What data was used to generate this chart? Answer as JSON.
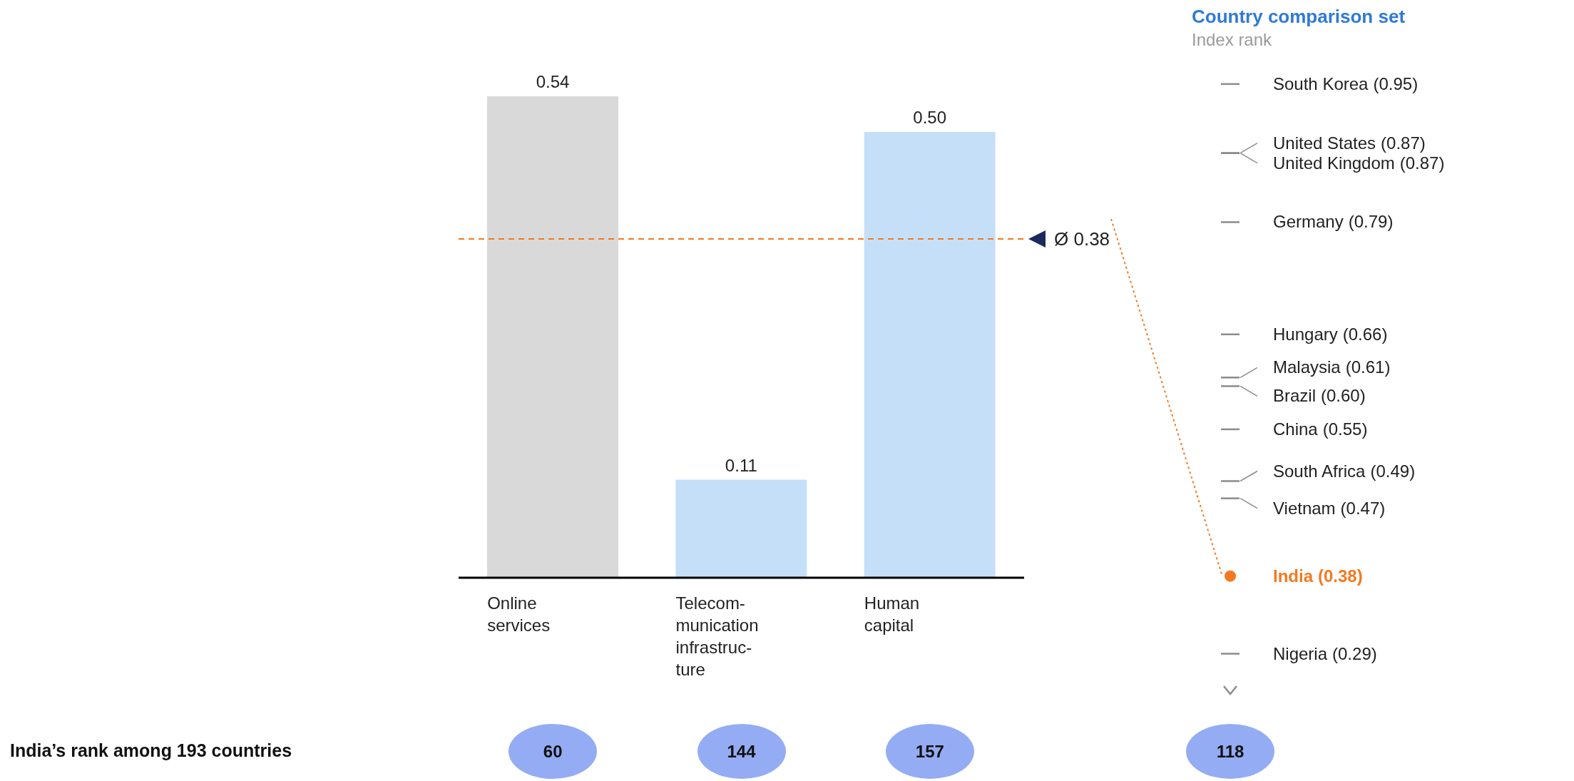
{
  "chart_data": [
    {
      "type": "bar",
      "categories": [
        "Online\nservices",
        "Telecom-\nmunication\ninfrastruc-\nture",
        "Human\ncapital"
      ],
      "values": [
        0.54,
        0.11,
        0.5
      ],
      "colors": [
        "#d9d9d9",
        "#c6dff8",
        "#c6dff8"
      ],
      "value_labels": [
        "0.54",
        "0.11",
        "0.50"
      ],
      "ref_lines": [
        {
          "axis": "y",
          "value": 0.38,
          "label": "Ø 0.38",
          "color": "#f4791f",
          "line_style": "dashed"
        }
      ],
      "annotations": [
        "India’s rank among 193 countries",
        "60",
        "144",
        "157"
      ]
    },
    {
      "type": "other",
      "title": "Country comparison set",
      "subtitle": "Index rank",
      "categories": [
        "South Korea",
        "United States",
        "United Kingdom",
        "Germany",
        "Hungary",
        "Malaysia",
        "Brazil",
        "China",
        "South Africa",
        "Vietnam",
        "India",
        "Nigeria"
      ],
      "series": [
        {
          "color": "#8c8c8c",
          "values": [
            0.95,
            0.87,
            0.87,
            0.79,
            0.66,
            0.61,
            0.6,
            0.55,
            0.49,
            0.47,
            null,
            0.29
          ],
          "value_labels": [
            "(0.95)",
            "(0.87)",
            "(0.87)",
            "(0.79)",
            "(0.66)",
            "(0.61)",
            "(0.60)",
            "(0.55)",
            "(0.49)",
            "(0.47)",
            null,
            "(0.29)"
          ]
        },
        {
          "color": "#f4791f",
          "marker": "circle",
          "values": [
            null,
            null,
            null,
            null,
            null,
            null,
            null,
            null,
            null,
            null,
            0.38,
            null
          ],
          "value_labels": [
            null,
            null,
            null,
            null,
            null,
            null,
            null,
            null,
            null,
            null,
            "(0.38)",
            null
          ]
        }
      ],
      "annotations": [
        "118"
      ]
    }
  ]
}
